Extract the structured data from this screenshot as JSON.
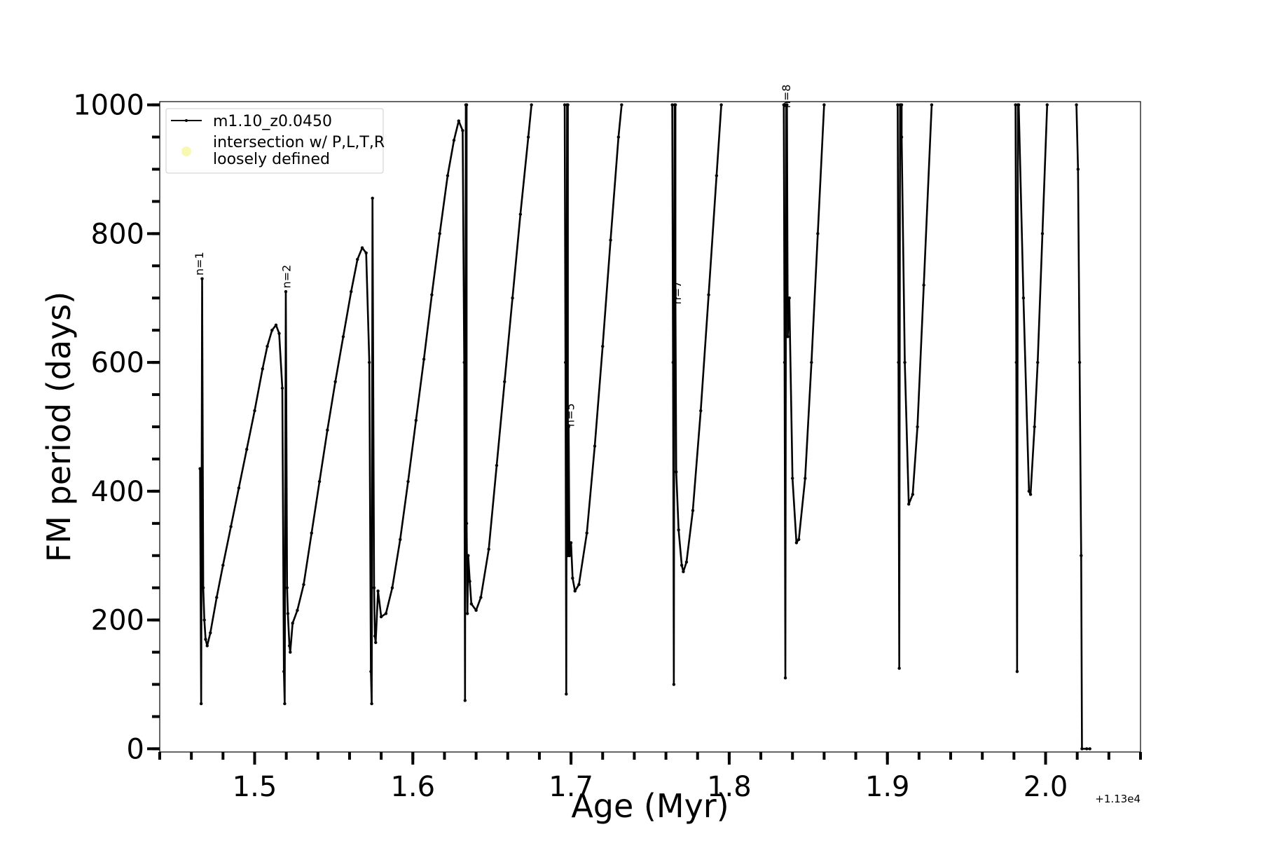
{
  "chart_data": {
    "type": "line",
    "xlabel": "Age (Myr)",
    "ylabel": "FM period (days)",
    "x_offset_label": "+1.13e4",
    "xlim": [
      11301.44,
      11302.06
    ],
    "ylim": [
      -5,
      1005
    ],
    "x_ticks": [
      {
        "value": 11301.5,
        "label": "1.5"
      },
      {
        "value": 11301.6,
        "label": "1.6"
      },
      {
        "value": 11301.7,
        "label": "1.7"
      },
      {
        "value": 11301.8,
        "label": "1.8"
      },
      {
        "value": 11301.9,
        "label": "1.9"
      },
      {
        "value": 11302.0,
        "label": "2.0"
      }
    ],
    "y_ticks": [
      {
        "value": 0,
        "label": "0"
      },
      {
        "value": 200,
        "label": "200"
      },
      {
        "value": 400,
        "label": "400"
      },
      {
        "value": 600,
        "label": "600"
      },
      {
        "value": 800,
        "label": "800"
      },
      {
        "value": 1000,
        "label": "1000"
      }
    ],
    "x_minor_step": 0.02,
    "y_minor_step": 50,
    "legend": {
      "placement": "upper-left",
      "entries": [
        {
          "label": "m1.10_z0.0450",
          "style": "line",
          "color": "#000000"
        },
        {
          "label_lines": [
            "intersection w/ P,L,T,R",
            "loosely defined"
          ],
          "style": "marker",
          "color": "#f7f7a8"
        }
      ]
    },
    "series": [
      {
        "name": "m1.10_z0.0450",
        "color": "#000000",
        "segments": [
          [
            [
              11301.4655,
              435
            ],
            [
              11301.4662,
              70
            ],
            [
              11301.4668,
              730
            ],
            [
              11301.4675,
              250
            ],
            [
              11301.4682,
              200
            ],
            [
              11301.469,
              170
            ],
            [
              11301.47,
              160
            ],
            [
              11301.472,
              180
            ],
            [
              11301.476,
              235
            ],
            [
              11301.48,
              285
            ],
            [
              11301.485,
              345
            ],
            [
              11301.49,
              405
            ],
            [
              11301.495,
              465
            ],
            [
              11301.5,
              525
            ],
            [
              11301.505,
              590
            ],
            [
              11301.508,
              625
            ],
            [
              11301.511,
              650
            ],
            [
              11301.5135,
              658
            ],
            [
              11301.5155,
              645
            ],
            [
              11301.5175,
              560
            ],
            [
              11301.5185,
              120
            ],
            [
              11301.519,
              70
            ],
            [
              11301.5197,
              710
            ],
            [
              11301.5205,
              250
            ],
            [
              11301.521,
              210
            ],
            [
              11301.522,
              160
            ],
            [
              11301.5225,
              150
            ],
            [
              11301.524,
              195
            ],
            [
              11301.527,
              215
            ],
            [
              11301.531,
              255
            ],
            [
              11301.536,
              335
            ],
            [
              11301.541,
              415
            ],
            [
              11301.546,
              495
            ],
            [
              11301.551,
              570
            ],
            [
              11301.556,
              640
            ],
            [
              11301.561,
              710
            ],
            [
              11301.565,
              760
            ],
            [
              11301.568,
              778
            ],
            [
              11301.5705,
              770
            ],
            [
              11301.5725,
              600
            ],
            [
              11301.5735,
              120
            ],
            [
              11301.574,
              70
            ],
            [
              11301.5745,
              855
            ],
            [
              11301.5755,
              250
            ],
            [
              11301.576,
              175
            ],
            [
              11301.5765,
              165
            ],
            [
              11301.578,
              245
            ],
            [
              11301.58,
              205
            ],
            [
              11301.583,
              210
            ],
            [
              11301.587,
              250
            ],
            [
              11301.592,
              325
            ],
            [
              11301.597,
              415
            ],
            [
              11301.602,
              510
            ],
            [
              11301.607,
              605
            ],
            [
              11301.612,
              705
            ],
            [
              11301.617,
              800
            ],
            [
              11301.622,
              890
            ],
            [
              11301.626,
              945
            ],
            [
              11301.629,
              975
            ],
            [
              11301.6315,
              960
            ],
            [
              11301.6325,
              600
            ],
            [
              11301.633,
              75
            ],
            [
              11301.6335,
              1000
            ]
          ],
          [
            [
              11301.634,
              1000
            ],
            [
              11301.634,
              350
            ],
            [
              11301.6345,
              210
            ],
            [
              11301.635,
              300
            ],
            [
              11301.636,
              260
            ],
            [
              11301.637,
              225
            ],
            [
              11301.64,
              215
            ],
            [
              11301.643,
              235
            ],
            [
              11301.648,
              310
            ],
            [
              11301.653,
              440
            ],
            [
              11301.658,
              570
            ],
            [
              11301.663,
              700
            ],
            [
              11301.668,
              830
            ],
            [
              11301.673,
              950
            ],
            [
              11301.675,
              1000
            ]
          ],
          [
            [
              11301.696,
              1000
            ],
            [
              11301.6965,
              600
            ],
            [
              11301.697,
              85
            ],
            [
              11301.6975,
              1000
            ]
          ],
          [
            [
              11301.698,
              1000
            ],
            [
              11301.698,
              300
            ],
            [
              11301.6985,
              500
            ],
            [
              11301.699,
              300
            ],
            [
              11301.7,
              320
            ],
            [
              11301.701,
              265
            ],
            [
              11301.7025,
              245
            ],
            [
              11301.705,
              255
            ],
            [
              11301.71,
              335
            ],
            [
              11301.715,
              470
            ],
            [
              11301.72,
              625
            ],
            [
              11301.725,
              790
            ],
            [
              11301.73,
              950
            ],
            [
              11301.732,
              1000
            ]
          ],
          [
            [
              11301.764,
              1000
            ],
            [
              11301.7645,
              600
            ],
            [
              11301.765,
              100
            ],
            [
              11301.7655,
              1000
            ]
          ],
          [
            [
              11301.766,
              1000
            ],
            [
              11301.766,
              700
            ],
            [
              11301.7665,
              430
            ],
            [
              11301.768,
              340
            ],
            [
              11301.77,
              285
            ],
            [
              11301.771,
              275
            ],
            [
              11301.773,
              290
            ],
            [
              11301.777,
              370
            ],
            [
              11301.782,
              525
            ],
            [
              11301.787,
              705
            ],
            [
              11301.792,
              890
            ],
            [
              11301.795,
              1000
            ]
          ],
          [
            [
              11301.8345,
              1000
            ],
            [
              11301.835,
              600
            ],
            [
              11301.8355,
              110
            ],
            [
              11301.836,
              1000
            ]
          ],
          [
            [
              11301.8365,
              1000
            ],
            [
              11301.837,
              640
            ],
            [
              11301.838,
              700
            ],
            [
              11301.84,
              420
            ],
            [
              11301.8425,
              320
            ],
            [
              11301.844,
              325
            ],
            [
              11301.848,
              420
            ],
            [
              11301.852,
              600
            ],
            [
              11301.856,
              800
            ],
            [
              11301.86,
              1000
            ]
          ],
          [
            [
              11301.9065,
              1000
            ],
            [
              11301.907,
              600
            ],
            [
              11301.9075,
              125
            ],
            [
              11301.908,
              1000
            ]
          ],
          [
            [
              11301.909,
              1000
            ],
            [
              11301.909,
              950
            ],
            [
              11301.911,
              600
            ],
            [
              11301.9135,
              380
            ],
            [
              11301.916,
              395
            ],
            [
              11301.919,
              500
            ],
            [
              11301.923,
              720
            ],
            [
              11301.928,
              1000
            ]
          ],
          [
            [
              11301.981,
              1000
            ],
            [
              11301.9815,
              600
            ],
            [
              11301.982,
              120
            ],
            [
              11301.9825,
              1000
            ]
          ],
          [
            [
              11301.983,
              1000
            ],
            [
              11301.986,
              700
            ],
            [
              11301.9895,
              400
            ],
            [
              11301.9905,
              395
            ],
            [
              11301.993,
              500
            ],
            [
              11301.995,
              600
            ],
            [
              11301.998,
              800
            ],
            [
              11302.001,
              1000
            ]
          ],
          [
            [
              11302.0195,
              1000
            ],
            [
              11302.0205,
              900
            ],
            [
              11302.0215,
              600
            ],
            [
              11302.0225,
              300
            ],
            [
              11302.023,
              0
            ],
            [
              11302.026,
              0
            ],
            [
              11302.028,
              0
            ]
          ]
        ]
      }
    ],
    "annotations": [
      {
        "text": "n=1",
        "x": 11301.4675,
        "y": 735
      },
      {
        "text": "n=2",
        "x": 11301.5225,
        "y": 715
      },
      {
        "text": "n=5",
        "x": 11301.702,
        "y": 500
      },
      {
        "text": "n=7",
        "x": 11301.7695,
        "y": 690
      },
      {
        "text": "n=8",
        "x": 11301.8385,
        "y": 995
      }
    ]
  }
}
